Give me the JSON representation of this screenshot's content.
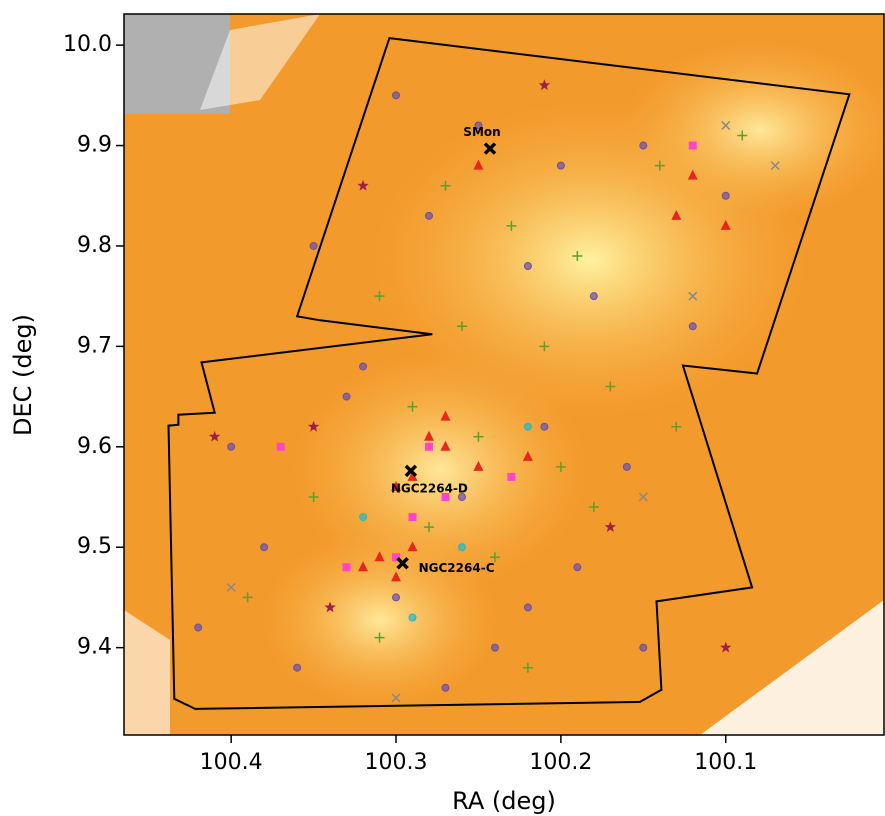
{
  "chart_data": {
    "type": "scatter",
    "xlabel": "RA (deg)",
    "ylabel": "DEC (deg)",
    "xlim": [
      100.465,
      100.004
    ],
    "ylim": [
      9.313,
      10.031
    ],
    "xticks": [
      100.4,
      100.3,
      100.2,
      100.1
    ],
    "yticks": [
      9.4,
      9.5,
      9.6,
      9.7,
      9.8,
      9.9,
      {
        "value": 10,
        "label": "10.0"
      }
    ],
    "outline": {
      "color": "#000000",
      "x": [
        100.4345,
        100.4218,
        100.152,
        100.139,
        100.142,
        100.084,
        100.126,
        100.081,
        100.025,
        100.304,
        100.36,
        100.346,
        100.278,
        100.418,
        100.41,
        100.432,
        100.432,
        100.438
      ],
      "y": [
        9.349,
        9.339,
        9.346,
        9.358,
        9.446,
        9.46,
        9.681,
        9.673,
        9.951,
        10.007,
        9.73,
        9.726,
        9.712,
        9.684,
        9.634,
        9.632,
        9.622,
        9.621
      ]
    },
    "series": [
      {
        "marker": "o",
        "color": "#6a4fa8",
        "x": [
          100.3,
          100.25,
          100.2,
          100.15,
          100.1,
          100.35,
          100.28,
          100.22,
          100.18,
          100.12,
          100.4,
          100.33,
          100.26,
          100.21,
          100.16,
          100.38,
          100.3,
          100.24,
          100.19,
          100.42,
          100.36,
          100.27,
          100.22,
          100.15,
          100.32
        ],
        "y": [
          9.95,
          9.92,
          9.88,
          9.9,
          9.85,
          9.8,
          9.83,
          9.78,
          9.75,
          9.72,
          9.6,
          9.65,
          9.55,
          9.62,
          9.58,
          9.5,
          9.45,
          9.4,
          9.48,
          9.42,
          9.38,
          9.36,
          9.44,
          9.4,
          9.68
        ]
      },
      {
        "marker": "+",
        "color": "#5aa02c",
        "x": [
          100.27,
          100.23,
          100.19,
          100.14,
          100.09,
          100.31,
          100.26,
          100.21,
          100.17,
          100.29,
          100.25,
          100.2,
          100.35,
          100.28,
          100.24,
          100.18,
          100.31,
          100.39,
          100.22,
          100.13
        ],
        "y": [
          9.86,
          9.82,
          9.79,
          9.88,
          9.91,
          9.75,
          9.72,
          9.7,
          9.66,
          9.64,
          9.61,
          9.58,
          9.55,
          9.52,
          9.49,
          9.54,
          9.41,
          9.45,
          9.38,
          9.62
        ]
      },
      {
        "marker": "^",
        "color": "#e8261c",
        "x": [
          100.28,
          100.27,
          100.29,
          100.3,
          100.25,
          100.22,
          100.31,
          100.3,
          100.32,
          100.29,
          100.12,
          100.1,
          100.13,
          100.25,
          100.27
        ],
        "y": [
          9.61,
          9.6,
          9.57,
          9.56,
          9.58,
          9.59,
          9.49,
          9.47,
          9.48,
          9.5,
          9.87,
          9.82,
          9.83,
          9.88,
          9.63
        ]
      },
      {
        "marker": "s",
        "color": "#ff44cc",
        "x": [
          100.37,
          100.12,
          100.28,
          100.27,
          100.23,
          100.33,
          100.3,
          100.29
        ],
        "y": [
          9.6,
          9.9,
          9.6,
          9.55,
          9.57,
          9.48,
          9.49,
          9.53
        ]
      },
      {
        "marker": "*",
        "color": "#a0204a",
        "x": [
          100.35,
          100.41,
          100.32,
          100.21,
          100.17,
          100.1,
          100.34
        ],
        "y": [
          9.62,
          9.61,
          9.86,
          9.96,
          9.52,
          9.4,
          9.44
        ]
      },
      {
        "marker": "x",
        "color": "#888888",
        "x": [
          100.1,
          100.07,
          100.12,
          100.4,
          100.15,
          100.3
        ],
        "y": [
          9.92,
          9.88,
          9.75,
          9.46,
          9.55,
          9.35
        ]
      },
      {
        "marker": "o",
        "color": "#22b8c8",
        "x": [
          100.29,
          100.26,
          100.22,
          100.32
        ],
        "y": [
          9.43,
          9.5,
          9.62,
          9.53
        ]
      }
    ],
    "annotations": [
      {
        "text": "SMon",
        "x": 100.243,
        "y": 9.897
      },
      {
        "text": "NGC2264-D",
        "x": 100.291,
        "y": 9.576
      },
      {
        "text": "NGC2264-C",
        "x": 100.296,
        "y": 9.484
      }
    ]
  }
}
